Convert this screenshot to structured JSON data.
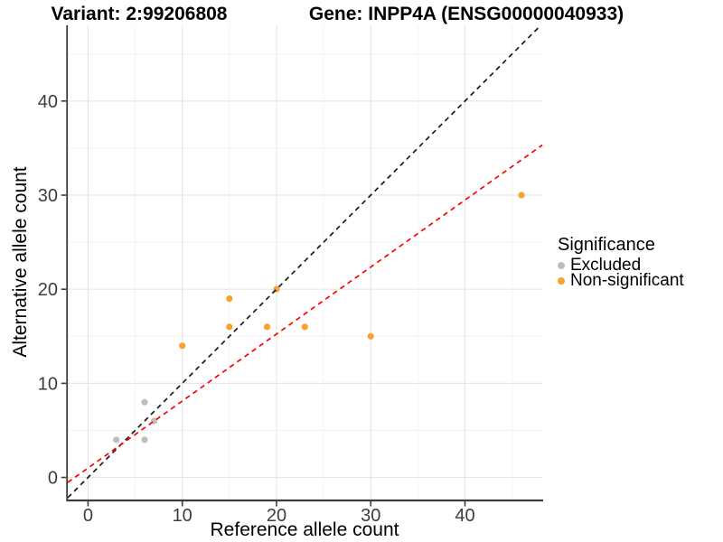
{
  "chart_data": {
    "type": "scatter",
    "title_left": "Variant: 2:99206808",
    "title_right": "Gene: INPP4A (ENSG00000040933)",
    "xlabel": "Reference allele count",
    "ylabel": "Alternative allele count",
    "x_ticks": [
      0,
      10,
      20,
      30,
      40
    ],
    "y_ticks": [
      0,
      10,
      20,
      30,
      40
    ],
    "x_minor": [
      5,
      15,
      25,
      35,
      45
    ],
    "y_minor": [
      5,
      15,
      25,
      35,
      45
    ],
    "xlim": [
      -2.15,
      48.2
    ],
    "ylim": [
      -2.35,
      48.05
    ],
    "grid": true,
    "legend": {
      "title": "Significance",
      "position": "right",
      "entries": [
        {
          "label": "Excluded",
          "color": "#BEBEBE"
        },
        {
          "label": "Non-significant",
          "color": "#F8A232"
        }
      ]
    },
    "series": [
      {
        "name": "Excluded",
        "color": "#BEBEBE",
        "points": [
          [
            3,
            4
          ],
          [
            6,
            4
          ],
          [
            6,
            8
          ],
          [
            7,
            6
          ]
        ]
      },
      {
        "name": "Non-significant",
        "color": "#F8A232",
        "points": [
          [
            10,
            14
          ],
          [
            15,
            16
          ],
          [
            15,
            19
          ],
          [
            19,
            16
          ],
          [
            20,
            20
          ],
          [
            23,
            16
          ],
          [
            30,
            15
          ],
          [
            46,
            30
          ]
        ]
      }
    ],
    "lines": [
      {
        "name": "identity-line",
        "slope": 1,
        "intercept": 0,
        "color": "#1A1A1A",
        "dash": "dashed"
      },
      {
        "name": "expected-ratio-line",
        "slope": 0.712,
        "intercept": 1.0,
        "color": "#FF0000",
        "dash": "dashed"
      }
    ],
    "colors": {
      "grid_major": "#E7E7E7",
      "grid_minor": "#F3F3F3",
      "axis_line": "#3C3C3C",
      "tick_text": "#3D3D3D",
      "title_text": "#000000"
    }
  }
}
